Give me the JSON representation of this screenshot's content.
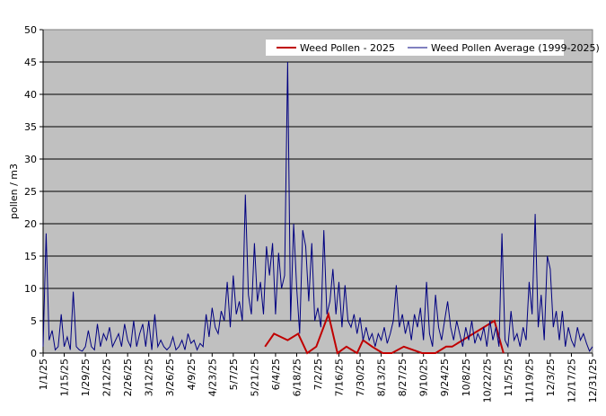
{
  "chart_data": {
    "type": "line",
    "y_label": "pollen / m3",
    "xlim": [
      0,
      364
    ],
    "xticks": [
      {
        "value": 0,
        "label": "1/1/25"
      },
      {
        "value": 14,
        "label": "1/15/25"
      },
      {
        "value": 28,
        "label": "1/29/25"
      },
      {
        "value": 42,
        "label": "2/12/25"
      },
      {
        "value": 56,
        "label": "2/26/25"
      },
      {
        "value": 70,
        "label": "3/12/25"
      },
      {
        "value": 84,
        "label": "3/26/25"
      },
      {
        "value": 98,
        "label": "4/9/25"
      },
      {
        "value": 112,
        "label": "4/23/25"
      },
      {
        "value": 126,
        "label": "5/7/25"
      },
      {
        "value": 140,
        "label": "5/21/25"
      },
      {
        "value": 154,
        "label": "6/4/25"
      },
      {
        "value": 168,
        "label": "6/18/25"
      },
      {
        "value": 182,
        "label": "7/2/25"
      },
      {
        "value": 196,
        "label": "7/16/25"
      },
      {
        "value": 210,
        "label": "7/30/25"
      },
      {
        "value": 224,
        "label": "8/13/25"
      },
      {
        "value": 238,
        "label": "8/27/25"
      },
      {
        "value": 252,
        "label": "9/10/25"
      },
      {
        "value": 266,
        "label": "9/24/25"
      },
      {
        "value": 280,
        "label": "10/8/25"
      },
      {
        "value": 294,
        "label": "10/22/25"
      },
      {
        "value": 308,
        "label": "11/5/25"
      },
      {
        "value": 322,
        "label": "11/19/25"
      },
      {
        "value": 336,
        "label": "12/3/25"
      },
      {
        "value": 350,
        "label": "12/17/25"
      },
      {
        "value": 364,
        "label": "12/31/25"
      }
    ],
    "ylim": [
      0,
      50
    ],
    "yticks": [
      0,
      5,
      10,
      15,
      20,
      25,
      30,
      35,
      40,
      45,
      50
    ],
    "grid": true,
    "legend": "top",
    "series": [
      {
        "name": "Weed Pollen - 2025",
        "color": "#c00000",
        "x": [
          147,
          153,
          162,
          169,
          175,
          181,
          189,
          195,
          201,
          208,
          212,
          218,
          225,
          231,
          239,
          251,
          260,
          267,
          271,
          299,
          305
        ],
        "values": [
          1,
          3,
          2,
          3,
          0,
          1,
          6,
          0,
          1,
          0,
          2,
          1,
          0,
          0,
          1,
          0,
          0,
          1,
          1,
          5,
          0
        ]
      },
      {
        "name": "Weed Pollen Average (1999-2025)",
        "color": "#000080",
        "x": [
          0,
          2,
          4,
          6,
          8,
          10,
          12,
          14,
          16,
          18,
          20,
          22,
          24,
          26,
          28,
          30,
          32,
          34,
          36,
          38,
          40,
          42,
          44,
          46,
          48,
          50,
          52,
          54,
          56,
          58,
          60,
          62,
          64,
          66,
          68,
          70,
          72,
          74,
          76,
          78,
          80,
          82,
          84,
          86,
          88,
          90,
          92,
          94,
          96,
          98,
          100,
          102,
          104,
          106,
          108,
          110,
          112,
          114,
          116,
          118,
          120,
          122,
          124,
          126,
          128,
          130,
          132,
          134,
          136,
          138,
          140,
          142,
          144,
          146,
          148,
          150,
          152,
          154,
          156,
          158,
          160,
          162,
          164,
          166,
          168,
          170,
          172,
          174,
          176,
          178,
          180,
          182,
          184,
          186,
          188,
          190,
          192,
          194,
          196,
          198,
          200,
          202,
          204,
          206,
          208,
          210,
          212,
          214,
          216,
          218,
          220,
          222,
          224,
          226,
          228,
          230,
          232,
          234,
          236,
          238,
          240,
          242,
          244,
          246,
          248,
          250,
          252,
          254,
          256,
          258,
          260,
          262,
          264,
          266,
          268,
          270,
          272,
          274,
          276,
          278,
          280,
          282,
          284,
          286,
          288,
          290,
          292,
          294,
          296,
          298,
          300,
          302,
          304,
          306,
          308,
          310,
          312,
          314,
          316,
          318,
          320,
          322,
          324,
          326,
          328,
          330,
          332,
          334,
          336,
          338,
          340,
          342,
          344,
          346,
          348,
          350,
          352,
          354,
          356,
          358,
          360,
          362,
          364
        ],
        "values": [
          1,
          18.5,
          2,
          3.5,
          0.5,
          1,
          6,
          1,
          2.5,
          0.5,
          9.5,
          1,
          0.5,
          0.3,
          1,
          3.5,
          1,
          0.5,
          4.5,
          1,
          3,
          2,
          4,
          1,
          2,
          3,
          1,
          4.5,
          2,
          1,
          5,
          1,
          3,
          4.5,
          1,
          5,
          0.5,
          6,
          1,
          2,
          1,
          0.5,
          1,
          2.5,
          0.5,
          1,
          2,
          0.5,
          3,
          1.5,
          2,
          0.5,
          1.5,
          1,
          6,
          2.5,
          7,
          4,
          3,
          6.5,
          5,
          11,
          4,
          12,
          6,
          8,
          5,
          24.5,
          9,
          6,
          17,
          8,
          11,
          6,
          16.5,
          12,
          17,
          6,
          15.5,
          10,
          12,
          45,
          5,
          20,
          10,
          3,
          19,
          16.5,
          8,
          17,
          5,
          7,
          4,
          19,
          6,
          8,
          13,
          6,
          11,
          4,
          10.5,
          5,
          4,
          6,
          3,
          5.5,
          2,
          4,
          2,
          3,
          1,
          3,
          2,
          4,
          1.5,
          3,
          5,
          10.5,
          4,
          6,
          3,
          5,
          2,
          6,
          4,
          7,
          2,
          11,
          3,
          1,
          9,
          4,
          2,
          5,
          8,
          4,
          2,
          5,
          3,
          1,
          4,
          2,
          5,
          1.5,
          3,
          2,
          4,
          1,
          5,
          2,
          4,
          1,
          18.5,
          2,
          1,
          6.5,
          2,
          3,
          1,
          4,
          2,
          11,
          6,
          21.5,
          4,
          9,
          2,
          15,
          13,
          4,
          6.5,
          2,
          6.5,
          1,
          4,
          2,
          1,
          4,
          2,
          3,
          1.5,
          0.3,
          1
        ]
      }
    ]
  }
}
